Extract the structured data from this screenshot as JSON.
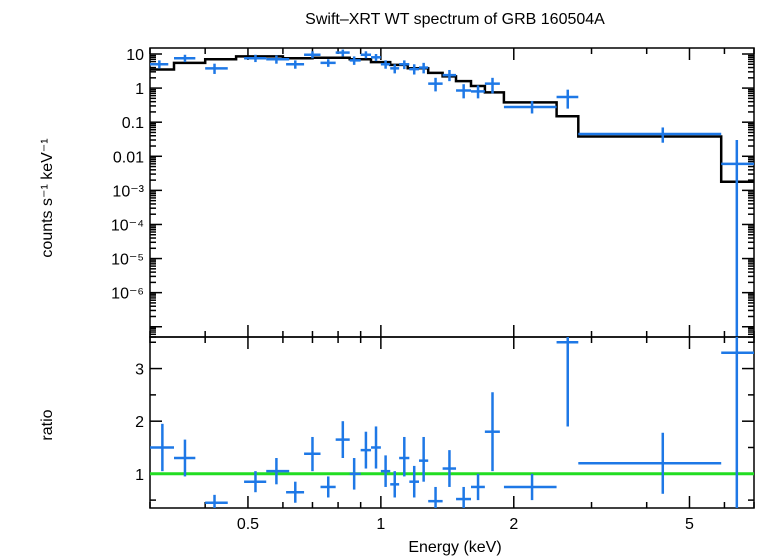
{
  "colors": {
    "data": "#1e78e6",
    "model": "#000000",
    "ratio_ref": "#22dd22",
    "axis": "#000000"
  },
  "chart_data": [
    {
      "type": "scatter",
      "name": "spectrum",
      "title": "Swift–XRT WT spectrum of GRB 160504A",
      "xlabel": "Energy (keV)",
      "ylabel": "counts s⁻¹ keV⁻¹",
      "xscale": "log",
      "yscale": "log",
      "xlim": [
        0.3,
        7.0
      ],
      "ylim": [
        5e-08,
        15
      ],
      "y_ticks": [
        {
          "v": 10,
          "label": "10"
        },
        {
          "v": 1,
          "label": "1"
        },
        {
          "v": 0.1,
          "label": "0.1"
        },
        {
          "v": 0.01,
          "label": "0.01"
        },
        {
          "v": 0.001,
          "label": "10⁻³"
        },
        {
          "v": 0.0001,
          "label": "10⁻⁴"
        },
        {
          "v": 1e-05,
          "label": "10⁻⁵"
        },
        {
          "v": 1e-06,
          "label": "10⁻⁶"
        }
      ],
      "data_points": [
        {
          "x": 0.315,
          "xlo": 0.3,
          "xhi": 0.33,
          "y": 5.0,
          "ylo": 3.8,
          "yhi": 6.5
        },
        {
          "x": 0.36,
          "xlo": 0.34,
          "xhi": 0.38,
          "y": 7.5,
          "ylo": 5.8,
          "yhi": 9.5
        },
        {
          "x": 0.42,
          "xlo": 0.4,
          "xhi": 0.45,
          "y": 3.8,
          "ylo": 2.6,
          "yhi": 5.2
        },
        {
          "x": 0.52,
          "xlo": 0.49,
          "xhi": 0.55,
          "y": 7.5,
          "ylo": 5.8,
          "yhi": 9.5
        },
        {
          "x": 0.58,
          "xlo": 0.55,
          "xhi": 0.62,
          "y": 7.0,
          "ylo": 5.2,
          "yhi": 9.0
        },
        {
          "x": 0.64,
          "xlo": 0.61,
          "xhi": 0.67,
          "y": 5.0,
          "ylo": 3.7,
          "yhi": 6.5
        },
        {
          "x": 0.7,
          "xlo": 0.67,
          "xhi": 0.73,
          "y": 9.5,
          "ylo": 7.5,
          "yhi": 12.0
        },
        {
          "x": 0.76,
          "xlo": 0.73,
          "xhi": 0.79,
          "y": 5.5,
          "ylo": 4.2,
          "yhi": 7.0
        },
        {
          "x": 0.82,
          "xlo": 0.79,
          "xhi": 0.85,
          "y": 11.0,
          "ylo": 8.5,
          "yhi": 13.5
        },
        {
          "x": 0.87,
          "xlo": 0.85,
          "xhi": 0.9,
          "y": 6.5,
          "ylo": 4.8,
          "yhi": 8.5
        },
        {
          "x": 0.925,
          "xlo": 0.9,
          "xhi": 0.95,
          "y": 9.5,
          "ylo": 7.5,
          "yhi": 12.0
        },
        {
          "x": 0.975,
          "xlo": 0.95,
          "xhi": 1.0,
          "y": 8.0,
          "ylo": 6.2,
          "yhi": 10.0
        },
        {
          "x": 1.025,
          "xlo": 1.0,
          "xhi": 1.05,
          "y": 5.0,
          "ylo": 3.7,
          "yhi": 6.5
        },
        {
          "x": 1.075,
          "xlo": 1.05,
          "xhi": 1.1,
          "y": 3.8,
          "ylo": 2.7,
          "yhi": 5.0
        },
        {
          "x": 1.13,
          "xlo": 1.1,
          "xhi": 1.16,
          "y": 5.0,
          "ylo": 3.6,
          "yhi": 6.5
        },
        {
          "x": 1.19,
          "xlo": 1.16,
          "xhi": 1.22,
          "y": 3.6,
          "ylo": 2.5,
          "yhi": 5.0
        },
        {
          "x": 1.25,
          "xlo": 1.22,
          "xhi": 1.28,
          "y": 4.0,
          "ylo": 2.7,
          "yhi": 5.5
        },
        {
          "x": 1.33,
          "xlo": 1.28,
          "xhi": 1.38,
          "y": 1.35,
          "ylo": 0.8,
          "yhi": 2.0
        },
        {
          "x": 1.43,
          "xlo": 1.38,
          "xhi": 1.48,
          "y": 2.4,
          "ylo": 1.6,
          "yhi": 3.4
        },
        {
          "x": 1.54,
          "xlo": 1.48,
          "xhi": 1.6,
          "y": 0.85,
          "ylo": 0.5,
          "yhi": 1.3
        },
        {
          "x": 1.66,
          "xlo": 1.6,
          "xhi": 1.72,
          "y": 0.8,
          "ylo": 0.5,
          "yhi": 1.2
        },
        {
          "x": 1.79,
          "xlo": 1.72,
          "xhi": 1.86,
          "y": 1.35,
          "ylo": 0.7,
          "yhi": 2.0
        },
        {
          "x": 2.2,
          "xlo": 1.9,
          "xhi": 2.5,
          "y": 0.28,
          "ylo": 0.18,
          "yhi": 0.42
        },
        {
          "x": 2.65,
          "xlo": 2.5,
          "xhi": 2.8,
          "y": 0.55,
          "ylo": 0.25,
          "yhi": 0.9
        },
        {
          "x": 4.35,
          "xlo": 2.8,
          "xhi": 5.9,
          "y": 0.045,
          "ylo": 0.025,
          "yhi": 0.07
        },
        {
          "x": 6.4,
          "xlo": 5.9,
          "xhi": 7.0,
          "y": 0.006,
          "ylo": 5e-08,
          "yhi": 0.03
        }
      ],
      "model_steps": [
        {
          "xlo": 0.3,
          "xhi": 0.34,
          "y": 3.5
        },
        {
          "xlo": 0.34,
          "xhi": 0.4,
          "y": 5.5
        },
        {
          "xlo": 0.4,
          "xhi": 0.47,
          "y": 7.0
        },
        {
          "xlo": 0.47,
          "xhi": 0.6,
          "y": 8.5
        },
        {
          "xlo": 0.6,
          "xhi": 0.7,
          "y": 7.5
        },
        {
          "xlo": 0.7,
          "xhi": 0.85,
          "y": 7.8
        },
        {
          "xlo": 0.85,
          "xhi": 0.95,
          "y": 7.0
        },
        {
          "xlo": 0.95,
          "xhi": 1.05,
          "y": 5.8
        },
        {
          "xlo": 1.05,
          "xhi": 1.15,
          "y": 4.8
        },
        {
          "xlo": 1.15,
          "xhi": 1.28,
          "y": 3.8
        },
        {
          "xlo": 1.28,
          "xhi": 1.38,
          "y": 2.8
        },
        {
          "xlo": 1.38,
          "xhi": 1.48,
          "y": 2.2
        },
        {
          "xlo": 1.48,
          "xhi": 1.6,
          "y": 1.6
        },
        {
          "xlo": 1.6,
          "xhi": 1.72,
          "y": 1.15
        },
        {
          "xlo": 1.72,
          "xhi": 1.9,
          "y": 0.75
        },
        {
          "xlo": 1.9,
          "xhi": 2.5,
          "y": 0.38
        },
        {
          "xlo": 2.5,
          "xhi": 2.8,
          "y": 0.15
        },
        {
          "xlo": 2.8,
          "xhi": 5.9,
          "y": 0.038
        },
        {
          "xlo": 5.9,
          "xhi": 7.0,
          "y": 0.0018
        }
      ]
    },
    {
      "type": "scatter",
      "name": "ratio",
      "xlabel": "Energy (keV)",
      "ylabel": "ratio",
      "xscale": "log",
      "yscale": "linear",
      "xlim": [
        0.3,
        7.0
      ],
      "ylim": [
        0.35,
        3.6
      ],
      "x_ticks": [
        {
          "v": 0.5,
          "label": "0.5"
        },
        {
          "v": 1,
          "label": "1"
        },
        {
          "v": 2,
          "label": "2"
        },
        {
          "v": 5,
          "label": "5"
        }
      ],
      "y_ticks": [
        {
          "v": 1,
          "label": "1"
        },
        {
          "v": 2,
          "label": "2"
        },
        {
          "v": 3,
          "label": "3"
        }
      ],
      "reference_line": 1.0,
      "data_points": [
        {
          "x": 0.32,
          "xlo": 0.3,
          "xhi": 0.34,
          "y": 1.5,
          "ylo": 1.05,
          "yhi": 1.95
        },
        {
          "x": 0.36,
          "xlo": 0.34,
          "xhi": 0.38,
          "y": 1.3,
          "ylo": 0.95,
          "yhi": 1.65
        },
        {
          "x": 0.42,
          "xlo": 0.4,
          "xhi": 0.45,
          "y": 0.45,
          "ylo": 0.35,
          "yhi": 0.6
        },
        {
          "x": 0.52,
          "xlo": 0.49,
          "xhi": 0.55,
          "y": 0.85,
          "ylo": 0.65,
          "yhi": 1.05
        },
        {
          "x": 0.58,
          "xlo": 0.55,
          "xhi": 0.62,
          "y": 1.05,
          "ylo": 0.8,
          "yhi": 1.3
        },
        {
          "x": 0.64,
          "xlo": 0.61,
          "xhi": 0.67,
          "y": 0.65,
          "ylo": 0.45,
          "yhi": 0.85
        },
        {
          "x": 0.7,
          "xlo": 0.67,
          "xhi": 0.73,
          "y": 1.38,
          "ylo": 1.05,
          "yhi": 1.7
        },
        {
          "x": 0.76,
          "xlo": 0.73,
          "xhi": 0.79,
          "y": 0.75,
          "ylo": 0.55,
          "yhi": 0.95
        },
        {
          "x": 0.82,
          "xlo": 0.79,
          "xhi": 0.85,
          "y": 1.65,
          "ylo": 1.3,
          "yhi": 2.0
        },
        {
          "x": 0.87,
          "xlo": 0.85,
          "xhi": 0.9,
          "y": 1.0,
          "ylo": 0.7,
          "yhi": 1.3
        },
        {
          "x": 0.925,
          "xlo": 0.9,
          "xhi": 0.95,
          "y": 1.45,
          "ylo": 1.1,
          "yhi": 1.8
        },
        {
          "x": 0.975,
          "xlo": 0.95,
          "xhi": 1.0,
          "y": 1.5,
          "ylo": 1.1,
          "yhi": 1.9
        },
        {
          "x": 1.025,
          "xlo": 1.0,
          "xhi": 1.05,
          "y": 1.05,
          "ylo": 0.75,
          "yhi": 1.35
        },
        {
          "x": 1.075,
          "xlo": 1.05,
          "xhi": 1.1,
          "y": 0.8,
          "ylo": 0.55,
          "yhi": 1.05
        },
        {
          "x": 1.13,
          "xlo": 1.1,
          "xhi": 1.16,
          "y": 1.3,
          "ylo": 0.95,
          "yhi": 1.7
        },
        {
          "x": 1.19,
          "xlo": 1.16,
          "xhi": 1.22,
          "y": 0.85,
          "ylo": 0.55,
          "yhi": 1.15
        },
        {
          "x": 1.25,
          "xlo": 1.22,
          "xhi": 1.28,
          "y": 1.25,
          "ylo": 0.85,
          "yhi": 1.7
        },
        {
          "x": 1.33,
          "xlo": 1.28,
          "xhi": 1.38,
          "y": 0.48,
          "ylo": 0.35,
          "yhi": 0.75
        },
        {
          "x": 1.43,
          "xlo": 1.38,
          "xhi": 1.48,
          "y": 1.1,
          "ylo": 0.75,
          "yhi": 1.45
        },
        {
          "x": 1.54,
          "xlo": 1.48,
          "xhi": 1.6,
          "y": 0.52,
          "ylo": 0.35,
          "yhi": 0.75
        },
        {
          "x": 1.66,
          "xlo": 1.6,
          "xhi": 1.72,
          "y": 0.75,
          "ylo": 0.5,
          "yhi": 1.0
        },
        {
          "x": 1.79,
          "xlo": 1.72,
          "xhi": 1.86,
          "y": 1.8,
          "ylo": 1.05,
          "yhi": 2.55
        },
        {
          "x": 2.2,
          "xlo": 1.9,
          "xhi": 2.5,
          "y": 0.75,
          "ylo": 0.5,
          "yhi": 1.0
        },
        {
          "x": 2.65,
          "xlo": 2.5,
          "xhi": 2.8,
          "y": 3.5,
          "ylo": 1.9,
          "yhi": 3.6
        },
        {
          "x": 4.35,
          "xlo": 2.8,
          "xhi": 5.9,
          "y": 1.2,
          "ylo": 0.62,
          "yhi": 1.78
        },
        {
          "x": 6.4,
          "xlo": 5.9,
          "xhi": 7.0,
          "y": 3.3,
          "ylo": 0.35,
          "yhi": 3.6
        }
      ]
    }
  ]
}
